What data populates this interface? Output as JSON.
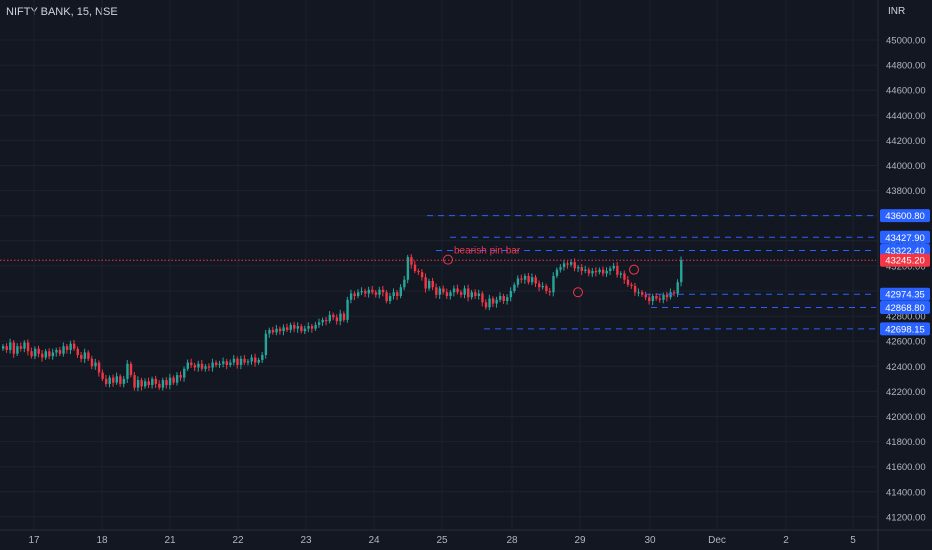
{
  "header": {
    "ticker": "NIFTY BANK, 15, NSE",
    "currency": "INR"
  },
  "colors": {
    "up": "#26a69a",
    "down": "#f23645",
    "level": "#2962ff",
    "price": "#f23645",
    "grid": "#1e222d",
    "bg": "#131722"
  },
  "chart_data": {
    "type": "candlestick",
    "title": "NIFTY BANK, 15, NSE",
    "ylim": [
      41100,
      45200
    ],
    "y_ticks": [
      "45000.00",
      "44800.00",
      "44600.00",
      "44400.00",
      "44200.00",
      "44000.00",
      "43800.00",
      "43600.00",
      "43400.00",
      "43200.00",
      "43000.00",
      "42800.00",
      "42600.00",
      "42400.00",
      "42200.00",
      "42000.00",
      "41800.00",
      "41600.00",
      "41400.00",
      "41200.00"
    ],
    "x_ticks": [
      "17",
      "18",
      "21",
      "22",
      "23",
      "24",
      "25",
      "28",
      "29",
      "30",
      "Dec",
      "2",
      "5"
    ],
    "current_price": "43245.20",
    "levels": [
      {
        "label": "43600.80",
        "value": 43600.8
      },
      {
        "label": "43427.90",
        "value": 43427.9
      },
      {
        "label": "43322.40",
        "value": 43322.4
      },
      {
        "label": "42974.35",
        "value": 42974.35
      },
      {
        "label": "42868.80",
        "value": 42868.8
      },
      {
        "label": "42698.15",
        "value": 42698.15
      }
    ],
    "annotation": "bearish pin bar",
    "series": [
      {
        "close": [
          42560,
          42530,
          42590,
          42500,
          42560,
          42540,
          42590,
          42520,
          42480,
          42540,
          42500,
          42470,
          42520,
          42480,
          42510,
          42530,
          42500,
          42560,
          42530,
          42580,
          42540,
          42490,
          42460,
          42510,
          42460,
          42400,
          42430,
          42350,
          42300,
          42260,
          42310,
          42270,
          42320,
          42260,
          42300,
          42420,
          42330,
          42230,
          42290,
          42240,
          42280,
          42250,
          42300,
          42260,
          42230,
          42290,
          42250,
          42310,
          42270,
          42330,
          42310,
          42380,
          42430,
          42410,
          42390,
          42420,
          42380,
          42400,
          42390,
          42430,
          42410,
          42420,
          42440,
          42410,
          42430,
          42460,
          42410,
          42460,
          42430,
          42440,
          42470,
          42430,
          42450,
          42490,
          42660,
          42690,
          42670,
          42700,
          42680,
          42710,
          42690,
          42730,
          42700,
          42720,
          42680,
          42700,
          42720,
          42700,
          42730,
          42750,
          42770,
          42760,
          42810,
          42790,
          42760,
          42820,
          42770,
          42930,
          42980,
          42960,
          42990,
          43000,
          42980,
          43010,
          42990,
          42970,
          43010,
          42990,
          42920,
          42960,
          42990,
          42960,
          43030,
          43090,
          43270,
          43210,
          43160,
          43150,
          43110,
          43020,
          43080,
          43030,
          42970,
          43020,
          42990,
          42960,
          42990,
          43020,
          42990,
          42970,
          43020,
          42950,
          42990,
          42960,
          42980,
          42910,
          42870,
          42940,
          42900,
          42930,
          42960,
          42920,
          42950,
          43000,
          43050,
          43100,
          43090,
          43120,
          43070,
          43110,
          43060,
          43030,
          43040,
          43000,
          42990,
          43120,
          43170,
          43190,
          43220,
          43210,
          43230,
          43180,
          43190,
          43160,
          43170,
          43140,
          43160,
          43150,
          43170,
          43140,
          43160,
          43180,
          43200,
          43130,
          43140,
          43090,
          43050,
          43040,
          42990,
          42990,
          42970,
          42950,
          42920,
          42960,
          42940,
          42930,
          42970,
          42950,
          42990,
          42980,
          43070,
          43245
        ]
      }
    ]
  }
}
